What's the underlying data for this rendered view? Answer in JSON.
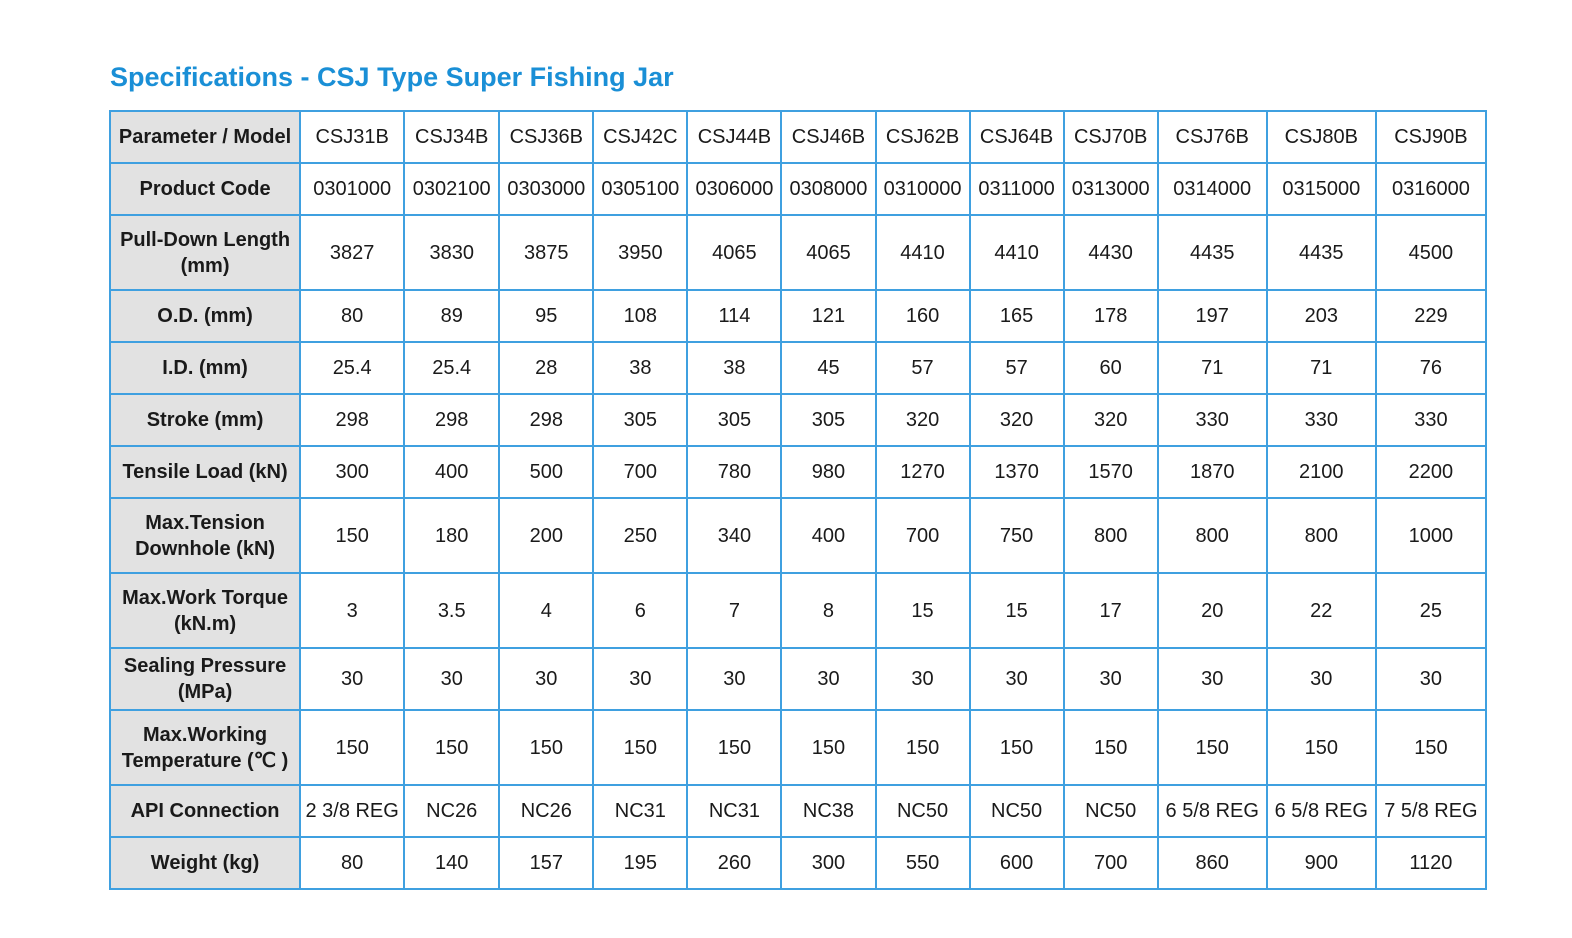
{
  "title": "Specifications - CSJ Type Super Fishing Jar",
  "colors": {
    "title": "#1a8fd6",
    "border": "#3fa0e0",
    "param_bg": "#e2e2e2"
  },
  "table": {
    "rows": [
      {
        "label": "Parameter / Model",
        "values": [
          "CSJ31B",
          "CSJ34B",
          "CSJ36B",
          "CSJ42C",
          "CSJ44B",
          "CSJ46B",
          "CSJ62B",
          "CSJ64B",
          "CSJ70B",
          "CSJ76B",
          "CSJ80B",
          "CSJ90B"
        ]
      },
      {
        "label": "Product Code",
        "values": [
          "0301000",
          "0302100",
          "0303000",
          "0305100",
          "0306000",
          "0308000",
          "0310000",
          "0311000",
          "0313000",
          "0314000",
          "0315000",
          "0316000"
        ]
      },
      {
        "label": "Pull-Down Length (mm)",
        "values": [
          "3827",
          "3830",
          "3875",
          "3950",
          "4065",
          "4065",
          "4410",
          "4410",
          "4430",
          "4435",
          "4435",
          "4500"
        ]
      },
      {
        "label": "O.D. (mm)",
        "values": [
          "80",
          "89",
          "95",
          "108",
          "114",
          "121",
          "160",
          "165",
          "178",
          "197",
          "203",
          "229"
        ]
      },
      {
        "label": "I.D. (mm)",
        "values": [
          "25.4",
          "25.4",
          "28",
          "38",
          "38",
          "45",
          "57",
          "57",
          "60",
          "71",
          "71",
          "76"
        ]
      },
      {
        "label": "Stroke (mm)",
        "values": [
          "298",
          "298",
          "298",
          "305",
          "305",
          "305",
          "320",
          "320",
          "320",
          "330",
          "330",
          "330"
        ]
      },
      {
        "label": "Tensile Load (kN)",
        "values": [
          "300",
          "400",
          "500",
          "700",
          "780",
          "980",
          "1270",
          "1370",
          "1570",
          "1870",
          "2100",
          "2200"
        ]
      },
      {
        "label": "Max.Tension Downhole (kN)",
        "values": [
          "150",
          "180",
          "200",
          "250",
          "340",
          "400",
          "700",
          "750",
          "800",
          "800",
          "800",
          "1000"
        ]
      },
      {
        "label": "Max.Work Torque (kN.m)",
        "values": [
          "3",
          "3.5",
          "4",
          "6",
          "7",
          "8",
          "15",
          "15",
          "17",
          "20",
          "22",
          "25"
        ]
      },
      {
        "label": "Sealing Pressure (MPa)",
        "values": [
          "30",
          "30",
          "30",
          "30",
          "30",
          "30",
          "30",
          "30",
          "30",
          "30",
          "30",
          "30"
        ]
      },
      {
        "label": "Max.Working Temperature (℃ )",
        "values": [
          "150",
          "150",
          "150",
          "150",
          "150",
          "150",
          "150",
          "150",
          "150",
          "150",
          "150",
          "150"
        ]
      },
      {
        "label": "API Connection",
        "values": [
          "2 3/8 REG",
          "NC26",
          "NC26",
          "NC31",
          "NC31",
          "NC38",
          "NC50",
          "NC50",
          "NC50",
          "6 5/8 REG",
          "6 5/8 REG",
          "7 5/8 REG"
        ]
      },
      {
        "label": "Weight (kg)",
        "values": [
          "80",
          "140",
          "157",
          "195",
          "260",
          "300",
          "550",
          "600",
          "700",
          "860",
          "900",
          "1120"
        ]
      }
    ]
  }
}
